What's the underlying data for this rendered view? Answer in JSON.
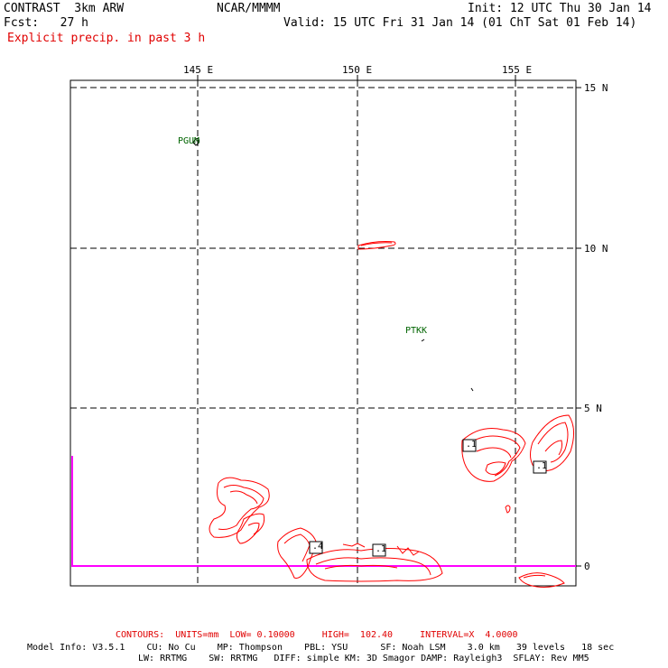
{
  "header": {
    "model": "CONTRAST  3km ARW",
    "center": "NCAR/MMMM",
    "init": "Init: 12 UTC Thu 30 Jan 14",
    "fcst": "Fcst:   27 h",
    "valid": "Valid: 15 UTC Fri 31 Jan 14 (01 ChT Sat 01 Feb 14)",
    "field": "Explicit precip. in past 3 h"
  },
  "axes": {
    "longitudes": [
      "145 E",
      "150 E",
      "155 E"
    ],
    "latitudes": [
      "15 N",
      "10 N",
      "5 N",
      "0"
    ]
  },
  "stations": [
    {
      "id": "PGUM"
    },
    {
      "id": "PTKK"
    }
  ],
  "contour_labels": [
    ".4",
    ".1",
    ".1",
    ".1"
  ],
  "colors": {
    "contour": "#ff0000",
    "equator_line": "#ff00ff",
    "station": "#006400",
    "header_red": "#e00000"
  },
  "footer": {
    "contours": "CONTOURS:  UNITS=mm  LOW= 0.10000     HIGH=  102.40     INTERVAL=X  4.0000",
    "model_info_1": "Model Info: V3.5.1    CU: No Cu    MP: Thompson    PBL: YSU      SF: Noah LSM    3.0 km   39 levels   18 sec",
    "model_info_2": "LW: RRTMG    SW: RRTMG   DIFF: simple KM: 3D Smagor DAMP: Rayleigh3  SFLAY: Rev MM5"
  }
}
